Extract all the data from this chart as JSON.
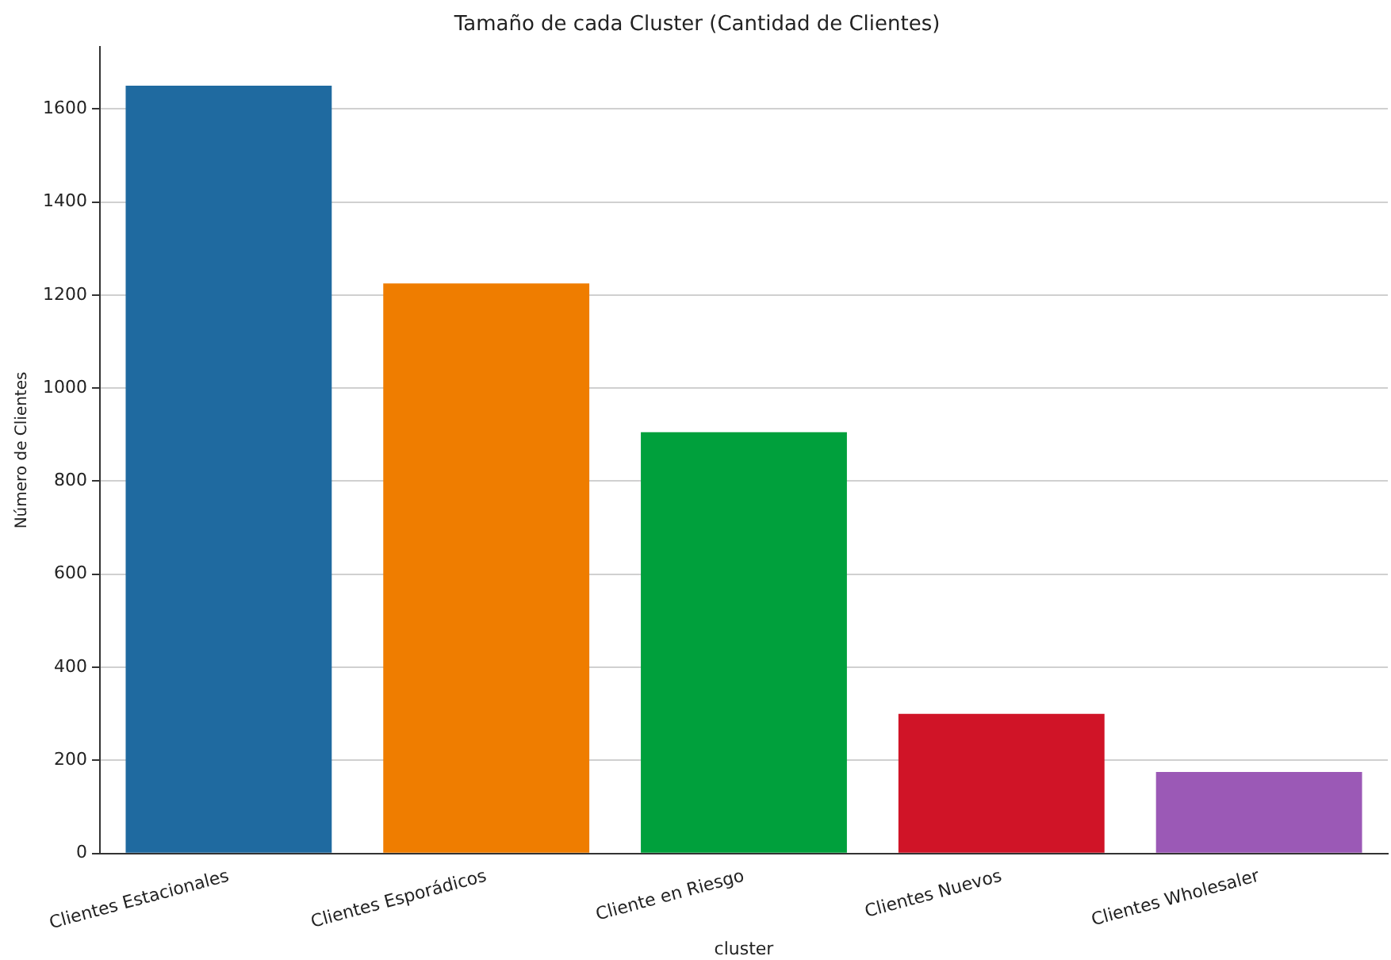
{
  "chart_data": {
    "type": "bar",
    "title": "Tamaño de cada Cluster (Cantidad de Clientes)",
    "xlabel": "cluster",
    "ylabel": "Número de Clientes",
    "categories": [
      "Clientes Estacionales",
      "Clientes Esporádicos",
      "Cliente en Riesgo",
      "Clientes Nuevos",
      "Clientes Wholesaler"
    ],
    "values": [
      1650,
      1225,
      905,
      300,
      175
    ],
    "colors": [
      "#1f6aa0",
      "#ef7d00",
      "#00a03c",
      "#d01427",
      "#9b59b6"
    ],
    "ylim": [
      0,
      1733
    ],
    "yticks": [
      0,
      200,
      400,
      600,
      800,
      1000,
      1200,
      1400,
      1600
    ],
    "grid": "y",
    "legend": false
  }
}
